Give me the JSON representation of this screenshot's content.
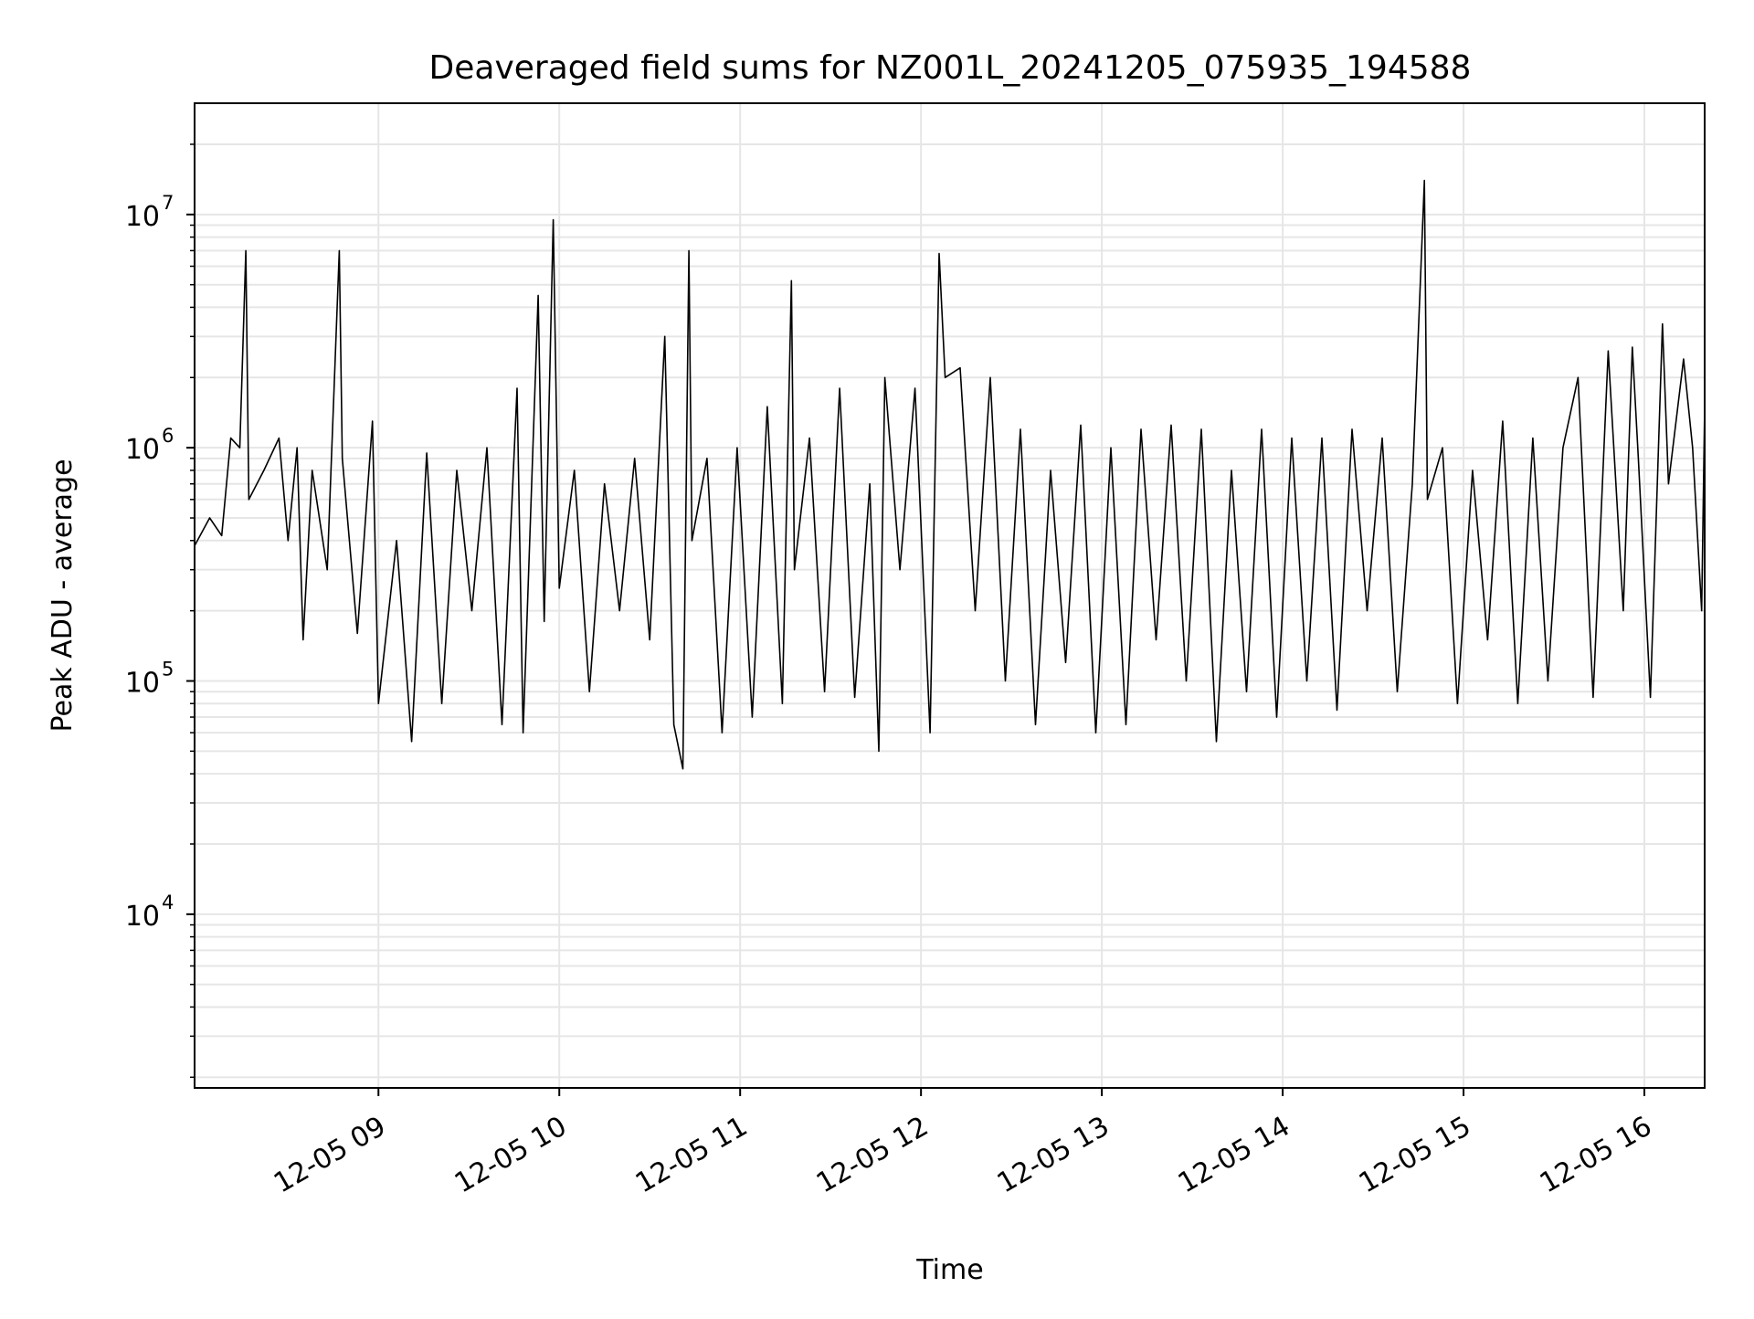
{
  "chart_data": {
    "type": "line",
    "title": "Deaveraged field sums for NZ001L_20241205_075935_194588",
    "xlabel": "Time",
    "ylabel": "Peak ADU - average",
    "yscale": "log",
    "ylim": [
      1800,
      30000000
    ],
    "xlim": [
      "2024-12-05 07:59",
      "2024-12-05 16:20"
    ],
    "grid": true,
    "legend": "none",
    "x_ticks": [
      {
        "t": "2024-12-05 09:00",
        "label": "12-05 09"
      },
      {
        "t": "2024-12-05 10:00",
        "label": "12-05 10"
      },
      {
        "t": "2024-12-05 11:00",
        "label": "12-05 11"
      },
      {
        "t": "2024-12-05 12:00",
        "label": "12-05 12"
      },
      {
        "t": "2024-12-05 13:00",
        "label": "12-05 13"
      },
      {
        "t": "2024-12-05 14:00",
        "label": "12-05 14"
      },
      {
        "t": "2024-12-05 15:00",
        "label": "12-05 15"
      },
      {
        "t": "2024-12-05 16:00",
        "label": "12-05 16"
      }
    ],
    "y_ticks": [
      {
        "value": 10000,
        "base": "10",
        "exp": "4"
      },
      {
        "value": 100000,
        "base": "10",
        "exp": "5"
      },
      {
        "value": 1000000,
        "base": "10",
        "exp": "6"
      },
      {
        "value": 10000000,
        "base": "10",
        "exp": "7"
      }
    ],
    "series": [
      {
        "color": "#000000",
        "points": [
          [
            "2024-12-05 07:59",
            380000
          ],
          [
            "2024-12-05 08:04",
            500000
          ],
          [
            "2024-12-05 08:08",
            420000
          ],
          [
            "2024-12-05 08:11",
            1100000
          ],
          [
            "2024-12-05 08:14",
            1000000
          ],
          [
            "2024-12-05 08:16",
            7000000
          ],
          [
            "2024-12-05 08:17",
            600000
          ],
          [
            "2024-12-05 08:22",
            800000
          ],
          [
            "2024-12-05 08:27",
            1100000
          ],
          [
            "2024-12-05 08:30",
            400000
          ],
          [
            "2024-12-05 08:33",
            1000000
          ],
          [
            "2024-12-05 08:35",
            150000
          ],
          [
            "2024-12-05 08:38",
            800000
          ],
          [
            "2024-12-05 08:43",
            300000
          ],
          [
            "2024-12-05 08:47",
            7000000
          ],
          [
            "2024-12-05 08:48",
            900000
          ],
          [
            "2024-12-05 08:53",
            160000
          ],
          [
            "2024-12-05 08:58",
            1300000
          ],
          [
            "2024-12-05 09:00",
            80000
          ],
          [
            "2024-12-05 09:06",
            400000
          ],
          [
            "2024-12-05 09:11",
            55000
          ],
          [
            "2024-12-05 09:16",
            950000
          ],
          [
            "2024-12-05 09:21",
            80000
          ],
          [
            "2024-12-05 09:26",
            800000
          ],
          [
            "2024-12-05 09:31",
            200000
          ],
          [
            "2024-12-05 09:36",
            1000000
          ],
          [
            "2024-12-05 09:41",
            65000
          ],
          [
            "2024-12-05 09:46",
            1800000
          ],
          [
            "2024-12-05 09:48",
            60000
          ],
          [
            "2024-12-05 09:53",
            4500000
          ],
          [
            "2024-12-05 09:55",
            180000
          ],
          [
            "2024-12-05 09:58",
            9500000
          ],
          [
            "2024-12-05 10:00",
            250000
          ],
          [
            "2024-12-05 10:05",
            800000
          ],
          [
            "2024-12-05 10:10",
            90000
          ],
          [
            "2024-12-05 10:15",
            700000
          ],
          [
            "2024-12-05 10:20",
            200000
          ],
          [
            "2024-12-05 10:25",
            900000
          ],
          [
            "2024-12-05 10:30",
            150000
          ],
          [
            "2024-12-05 10:35",
            3000000
          ],
          [
            "2024-12-05 10:38",
            65000
          ],
          [
            "2024-12-05 10:41",
            42000
          ],
          [
            "2024-12-05 10:43",
            7000000
          ],
          [
            "2024-12-05 10:44",
            400000
          ],
          [
            "2024-12-05 10:49",
            900000
          ],
          [
            "2024-12-05 10:54",
            60000
          ],
          [
            "2024-12-05 10:59",
            1000000
          ],
          [
            "2024-12-05 11:04",
            70000
          ],
          [
            "2024-12-05 11:09",
            1500000
          ],
          [
            "2024-12-05 11:14",
            80000
          ],
          [
            "2024-12-05 11:17",
            5200000
          ],
          [
            "2024-12-05 11:18",
            300000
          ],
          [
            "2024-12-05 11:23",
            1100000
          ],
          [
            "2024-12-05 11:28",
            90000
          ],
          [
            "2024-12-05 11:33",
            1800000
          ],
          [
            "2024-12-05 11:38",
            85000
          ],
          [
            "2024-12-05 11:43",
            700000
          ],
          [
            "2024-12-05 11:46",
            50000
          ],
          [
            "2024-12-05 11:48",
            2000000
          ],
          [
            "2024-12-05 11:53",
            300000
          ],
          [
            "2024-12-05 11:58",
            1800000
          ],
          [
            "2024-12-05 12:03",
            60000
          ],
          [
            "2024-12-05 12:06",
            6800000
          ],
          [
            "2024-12-05 12:08",
            2000000
          ],
          [
            "2024-12-05 12:13",
            2200000
          ],
          [
            "2024-12-05 12:18",
            200000
          ],
          [
            "2024-12-05 12:23",
            2000000
          ],
          [
            "2024-12-05 12:28",
            100000
          ],
          [
            "2024-12-05 12:33",
            1200000
          ],
          [
            "2024-12-05 12:38",
            65000
          ],
          [
            "2024-12-05 12:43",
            800000
          ],
          [
            "2024-12-05 12:48",
            120000
          ],
          [
            "2024-12-05 12:53",
            1250000
          ],
          [
            "2024-12-05 12:58",
            60000
          ],
          [
            "2024-12-05 13:03",
            1000000
          ],
          [
            "2024-12-05 13:08",
            65000
          ],
          [
            "2024-12-05 13:13",
            1200000
          ],
          [
            "2024-12-05 13:18",
            150000
          ],
          [
            "2024-12-05 13:23",
            1250000
          ],
          [
            "2024-12-05 13:28",
            100000
          ],
          [
            "2024-12-05 13:33",
            1200000
          ],
          [
            "2024-12-05 13:38",
            55000
          ],
          [
            "2024-12-05 13:43",
            800000
          ],
          [
            "2024-12-05 13:48",
            90000
          ],
          [
            "2024-12-05 13:53",
            1200000
          ],
          [
            "2024-12-05 13:58",
            70000
          ],
          [
            "2024-12-05 14:03",
            1100000
          ],
          [
            "2024-12-05 14:08",
            100000
          ],
          [
            "2024-12-05 14:13",
            1100000
          ],
          [
            "2024-12-05 14:18",
            75000
          ],
          [
            "2024-12-05 14:23",
            1200000
          ],
          [
            "2024-12-05 14:28",
            200000
          ],
          [
            "2024-12-05 14:33",
            1100000
          ],
          [
            "2024-12-05 14:38",
            90000
          ],
          [
            "2024-12-05 14:43",
            700000
          ],
          [
            "2024-12-05 14:47",
            14000000
          ],
          [
            "2024-12-05 14:48",
            600000
          ],
          [
            "2024-12-05 14:53",
            1000000
          ],
          [
            "2024-12-05 14:58",
            80000
          ],
          [
            "2024-12-05 15:03",
            800000
          ],
          [
            "2024-12-05 15:08",
            150000
          ],
          [
            "2024-12-05 15:13",
            1300000
          ],
          [
            "2024-12-05 15:18",
            80000
          ],
          [
            "2024-12-05 15:23",
            1100000
          ],
          [
            "2024-12-05 15:28",
            100000
          ],
          [
            "2024-12-05 15:33",
            1000000
          ],
          [
            "2024-12-05 15:38",
            2000000
          ],
          [
            "2024-12-05 15:43",
            85000
          ],
          [
            "2024-12-05 15:48",
            2600000
          ],
          [
            "2024-12-05 15:53",
            200000
          ],
          [
            "2024-12-05 15:56",
            2700000
          ],
          [
            "2024-12-05 15:58",
            900000
          ],
          [
            "2024-12-05 16:02",
            85000
          ],
          [
            "2024-12-05 16:06",
            3400000
          ],
          [
            "2024-12-05 16:08",
            700000
          ],
          [
            "2024-12-05 16:13",
            2400000
          ],
          [
            "2024-12-05 16:16",
            1000000
          ],
          [
            "2024-12-05 16:19",
            200000
          ],
          [
            "2024-12-05 16:20",
            1500000
          ]
        ]
      }
    ]
  }
}
